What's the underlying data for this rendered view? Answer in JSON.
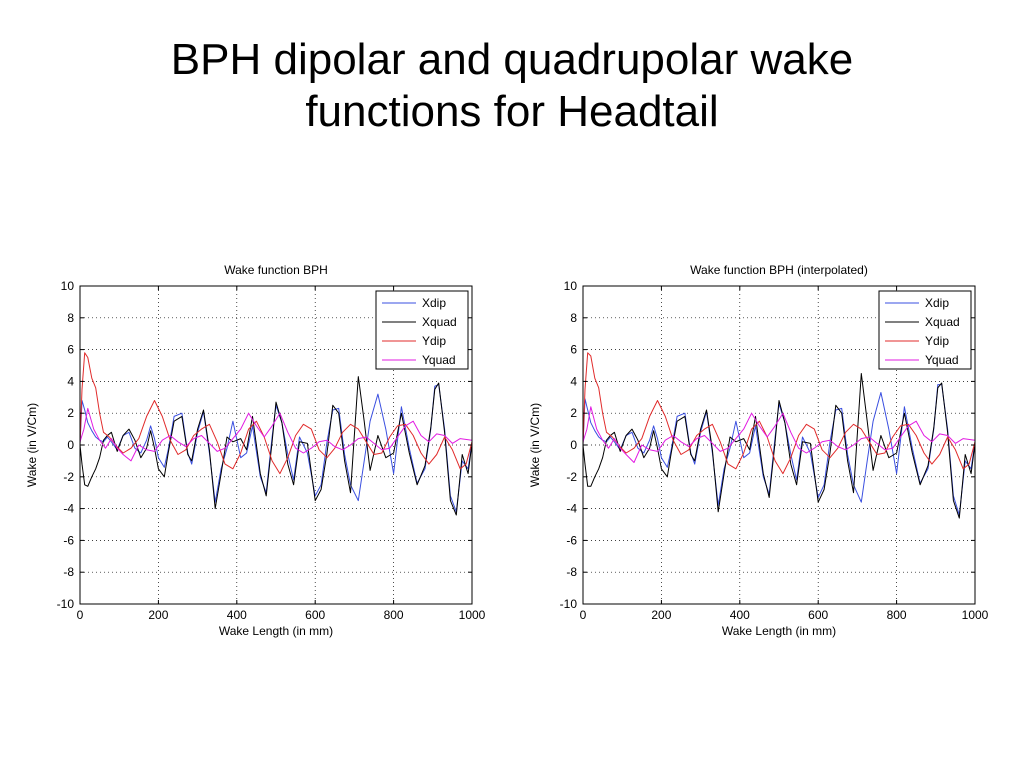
{
  "slide": {
    "title_line1": "BPH dipolar and quadrupolar wake",
    "title_line2": "functions for Headtail"
  },
  "chart_data": [
    {
      "type": "line",
      "title": "Wake function BPH",
      "xlabel": "Wake Length (in mm)",
      "ylabel": "Wake (in  V/Cm)",
      "xlim": [
        0,
        1000
      ],
      "ylim": [
        -10,
        10
      ],
      "xticks": [
        0,
        200,
        400,
        600,
        800,
        1000
      ],
      "yticks": [
        -10,
        -8,
        -6,
        -4,
        -2,
        0,
        2,
        4,
        6,
        8,
        10
      ],
      "grid": true,
      "legend_position": "top-right",
      "series": [
        {
          "name": "Xdip",
          "color": "#3a4fe0",
          "x": [
            0,
            5,
            12,
            20,
            30,
            40,
            50,
            60,
            70,
            80,
            95,
            110,
            125,
            140,
            155,
            170,
            180,
            190,
            200,
            215,
            225,
            240,
            260,
            275,
            285,
            300,
            315,
            330,
            345,
            360,
            375,
            390,
            410,
            425,
            440,
            460,
            475,
            490,
            500,
            515,
            530,
            545,
            560,
            580,
            600,
            615,
            630,
            645,
            660,
            675,
            690,
            710,
            725,
            740,
            760,
            780,
            800,
            820,
            840,
            860,
            880,
            895,
            905,
            915,
            930,
            945,
            960,
            975,
            990,
            1000
          ],
          "y": [
            0,
            2.8,
            2.2,
            1.4,
            0.9,
            0.5,
            0.3,
            0.2,
            0.5,
            0.2,
            -0.3,
            0.6,
            0.8,
            -0.2,
            -0.5,
            0.3,
            1.2,
            0.4,
            -0.8,
            -1.4,
            -0.3,
            1.8,
            2.0,
            -0.5,
            -1.2,
            0.8,
            2.1,
            -0.5,
            -3.6,
            -1.5,
            -0.2,
            1.5,
            -0.8,
            -0.5,
            1.2,
            -2.0,
            -3.0,
            0.5,
            2.5,
            1.4,
            -0.6,
            -2.2,
            0.5,
            -0.5,
            -3.2,
            -2.5,
            0.2,
            2.2,
            2.3,
            -0.6,
            -2.5,
            -3.5,
            -1.0,
            1.5,
            3.2,
            1.0,
            -1.8,
            2.4,
            -0.2,
            -2.4,
            -1.5,
            1.0,
            3.7,
            3.8,
            1.0,
            -3.2,
            -4.2,
            -1.0,
            -1.5,
            0.2
          ]
        },
        {
          "name": "Xquad",
          "color": "#000000",
          "x": [
            0,
            5,
            12,
            20,
            30,
            40,
            50,
            60,
            70,
            80,
            95,
            110,
            125,
            140,
            155,
            170,
            180,
            190,
            200,
            215,
            225,
            240,
            260,
            275,
            285,
            300,
            315,
            330,
            345,
            360,
            375,
            390,
            410,
            425,
            440,
            460,
            475,
            490,
            500,
            515,
            530,
            545,
            560,
            580,
            600,
            615,
            630,
            645,
            660,
            675,
            690,
            710,
            725,
            740,
            760,
            780,
            800,
            820,
            840,
            860,
            880,
            895,
            905,
            915,
            930,
            945,
            960,
            975,
            990,
            1000
          ],
          "y": [
            0,
            -1.2,
            -2.5,
            -2.6,
            -2.0,
            -1.5,
            -0.8,
            0.3,
            0.6,
            0.8,
            -0.4,
            0.6,
            1.0,
            0.3,
            -0.8,
            -0.2,
            0.9,
            -0.2,
            -1.5,
            -2.0,
            -0.5,
            1.5,
            1.8,
            -0.6,
            -1.0,
            1.0,
            2.2,
            -0.3,
            -4.0,
            -1.8,
            0.5,
            0.2,
            0.4,
            -0.3,
            1.8,
            -1.8,
            -3.2,
            0.2,
            2.7,
            1.4,
            -1.2,
            -2.5,
            0.2,
            0.1,
            -3.5,
            -2.8,
            -0.5,
            2.5,
            2.0,
            -1.0,
            -3.0,
            4.3,
            1.5,
            -1.6,
            0.6,
            -0.8,
            -0.5,
            2.0,
            -0.5,
            -2.5,
            -1.3,
            1.1,
            3.5,
            3.9,
            0.8,
            -3.5,
            -4.4,
            -0.6,
            -1.8,
            0.1
          ]
        },
        {
          "name": "Ydip",
          "color": "#e12b2b",
          "x": [
            0,
            5,
            12,
            20,
            30,
            40,
            50,
            60,
            75,
            90,
            110,
            130,
            150,
            170,
            190,
            210,
            230,
            250,
            270,
            290,
            310,
            330,
            350,
            370,
            390,
            410,
            430,
            450,
            470,
            490,
            510,
            530,
            550,
            570,
            590,
            610,
            630,
            650,
            670,
            690,
            710,
            730,
            750,
            770,
            790,
            810,
            830,
            850,
            870,
            890,
            910,
            930,
            950,
            970,
            985,
            1000
          ],
          "y": [
            0,
            3.5,
            5.8,
            5.5,
            4.2,
            3.6,
            2.0,
            0.8,
            0.5,
            0,
            -0.5,
            -0.2,
            0.4,
            1.8,
            2.8,
            1.8,
            0.3,
            -0.6,
            -0.3,
            0.6,
            1.0,
            1.3,
            0.2,
            -1.2,
            -1.5,
            -0.5,
            1.0,
            1.5,
            0.5,
            -1.0,
            -1.8,
            -0.8,
            0.6,
            1.3,
            1.0,
            -0.3,
            -0.8,
            -0.2,
            0.8,
            1.3,
            1.0,
            0.2,
            -0.6,
            -0.5,
            0.5,
            1.2,
            1.3,
            0.6,
            -0.5,
            -1.2,
            -0.6,
            0.5,
            -0.3,
            -1.5,
            -1.2,
            0.2
          ]
        },
        {
          "name": "Yquad",
          "color": "#e21be2",
          "x": [
            0,
            10,
            20,
            35,
            50,
            65,
            80,
            95,
            110,
            130,
            150,
            170,
            190,
            210,
            230,
            250,
            270,
            290,
            310,
            330,
            350,
            370,
            390,
            410,
            430,
            450,
            470,
            490,
            510,
            530,
            550,
            570,
            590,
            610,
            630,
            650,
            670,
            690,
            710,
            730,
            750,
            770,
            790,
            810,
            830,
            850,
            870,
            890,
            910,
            930,
            950,
            970,
            1000
          ],
          "y": [
            0.2,
            1.0,
            2.3,
            1.0,
            0.3,
            -0.2,
            0.4,
            -0.2,
            -0.6,
            -1.0,
            0,
            -0.3,
            -0.4,
            0.3,
            0.6,
            0.2,
            -0.1,
            0.4,
            0.6,
            0.1,
            -0.4,
            -0.2,
            0.4,
            1.0,
            2.0,
            1.2,
            0.5,
            1.2,
            2.0,
            0.8,
            -0.2,
            -0.5,
            -0.2,
            0.2,
            0.3,
            -0.1,
            -0.3,
            0,
            0.4,
            0.5,
            0.1,
            -0.3,
            -0.2,
            0.5,
            1.2,
            1.5,
            0.6,
            0.2,
            0.7,
            0.6,
            0.1,
            0.4,
            0.3
          ]
        }
      ]
    },
    {
      "type": "line",
      "title": "Wake function BPH (interpolated)",
      "xlabel": "Wake Length (in mm)",
      "ylabel": "Wake (in  V/Cm)",
      "xlim": [
        0,
        1000
      ],
      "ylim": [
        -10,
        10
      ],
      "xticks": [
        0,
        200,
        400,
        600,
        800,
        1000
      ],
      "yticks": [
        -10,
        -8,
        -6,
        -4,
        -2,
        0,
        2,
        4,
        6,
        8,
        10
      ],
      "grid": true,
      "legend_position": "top-right",
      "series": [
        {
          "name": "Xdip",
          "color": "#3a4fe0",
          "x": [
            0,
            5,
            12,
            20,
            30,
            40,
            50,
            60,
            70,
            80,
            95,
            110,
            125,
            140,
            155,
            170,
            180,
            190,
            200,
            215,
            225,
            240,
            260,
            275,
            285,
            300,
            315,
            330,
            345,
            360,
            375,
            390,
            410,
            425,
            440,
            460,
            475,
            490,
            500,
            515,
            530,
            545,
            560,
            580,
            600,
            615,
            630,
            645,
            660,
            675,
            690,
            710,
            725,
            740,
            760,
            780,
            800,
            820,
            840,
            860,
            880,
            895,
            905,
            915,
            930,
            945,
            960,
            975,
            990,
            1000
          ],
          "y": [
            0,
            2.9,
            2.2,
            1.4,
            0.9,
            0.5,
            0.3,
            0.2,
            0.5,
            0.2,
            -0.3,
            0.6,
            0.8,
            -0.2,
            -0.5,
            0.3,
            1.2,
            0.4,
            -0.8,
            -1.4,
            -0.3,
            1.8,
            2.0,
            -0.5,
            -1.2,
            0.8,
            2.1,
            -0.5,
            -3.8,
            -1.5,
            -0.2,
            1.5,
            -0.8,
            -0.5,
            1.2,
            -2.0,
            -3.1,
            0.5,
            2.6,
            1.4,
            -0.6,
            -2.2,
            0.5,
            -0.5,
            -3.3,
            -2.5,
            0.2,
            2.2,
            2.3,
            -0.6,
            -2.5,
            -3.6,
            -1.0,
            1.5,
            3.3,
            1.0,
            -1.8,
            2.4,
            -0.2,
            -2.4,
            -1.5,
            1.0,
            3.8,
            3.8,
            1.0,
            -3.2,
            -4.4,
            -1.0,
            -1.5,
            0.2
          ]
        },
        {
          "name": "Xquad",
          "color": "#000000",
          "x": [
            0,
            5,
            12,
            20,
            30,
            40,
            50,
            60,
            70,
            80,
            95,
            110,
            125,
            140,
            155,
            170,
            180,
            190,
            200,
            215,
            225,
            240,
            260,
            275,
            285,
            300,
            315,
            330,
            345,
            360,
            375,
            390,
            410,
            425,
            440,
            460,
            475,
            490,
            500,
            515,
            530,
            545,
            560,
            580,
            600,
            615,
            630,
            645,
            660,
            675,
            690,
            710,
            725,
            740,
            760,
            780,
            800,
            820,
            840,
            860,
            880,
            895,
            905,
            915,
            930,
            945,
            960,
            975,
            990,
            1000
          ],
          "y": [
            0,
            -1.2,
            -2.6,
            -2.6,
            -2.0,
            -1.5,
            -0.8,
            0.3,
            0.6,
            0.8,
            -0.4,
            0.6,
            1.0,
            0.3,
            -0.8,
            -0.2,
            0.9,
            -0.2,
            -1.5,
            -2.0,
            -0.5,
            1.5,
            1.8,
            -0.6,
            -1.0,
            1.0,
            2.2,
            -0.3,
            -4.2,
            -1.8,
            0.5,
            0.2,
            0.4,
            -0.3,
            1.8,
            -1.8,
            -3.3,
            0.2,
            2.8,
            1.4,
            -1.2,
            -2.5,
            0.2,
            0.1,
            -3.6,
            -2.8,
            -0.5,
            2.5,
            2.0,
            -1.0,
            -3.0,
            4.5,
            1.5,
            -1.6,
            0.6,
            -0.8,
            -0.5,
            2.0,
            -0.5,
            -2.5,
            -1.3,
            1.1,
            3.6,
            3.9,
            0.8,
            -3.5,
            -4.6,
            -0.6,
            -1.8,
            0.1
          ]
        },
        {
          "name": "Ydip",
          "color": "#e12b2b",
          "x": [
            0,
            5,
            12,
            20,
            30,
            40,
            50,
            60,
            75,
            90,
            110,
            130,
            150,
            170,
            190,
            210,
            230,
            250,
            270,
            290,
            310,
            330,
            350,
            370,
            390,
            410,
            430,
            450,
            470,
            490,
            510,
            530,
            550,
            570,
            590,
            610,
            630,
            650,
            670,
            690,
            710,
            730,
            750,
            770,
            790,
            810,
            830,
            850,
            870,
            890,
            910,
            930,
            950,
            970,
            985,
            1000
          ],
          "y": [
            0,
            3.5,
            5.8,
            5.6,
            4.2,
            3.6,
            2.0,
            0.8,
            0.5,
            0,
            -0.5,
            -0.2,
            0.4,
            1.8,
            2.8,
            1.8,
            0.3,
            -0.6,
            -0.3,
            0.6,
            1.0,
            1.3,
            0.2,
            -1.2,
            -1.5,
            -0.5,
            1.0,
            1.5,
            0.5,
            -1.0,
            -1.8,
            -0.8,
            0.6,
            1.3,
            1.0,
            -0.3,
            -0.8,
            -0.2,
            0.8,
            1.3,
            1.0,
            0.2,
            -0.6,
            -0.5,
            0.5,
            1.2,
            1.3,
            0.6,
            -0.5,
            -1.2,
            -0.6,
            0.5,
            -0.3,
            -1.5,
            -1.2,
            0.2
          ]
        },
        {
          "name": "Yquad",
          "color": "#e21be2",
          "x": [
            0,
            10,
            20,
            35,
            50,
            65,
            80,
            95,
            110,
            130,
            150,
            170,
            190,
            210,
            230,
            250,
            270,
            290,
            310,
            330,
            350,
            370,
            390,
            410,
            430,
            450,
            470,
            490,
            510,
            530,
            550,
            570,
            590,
            610,
            630,
            650,
            670,
            690,
            710,
            730,
            750,
            770,
            790,
            810,
            830,
            850,
            870,
            890,
            910,
            930,
            950,
            970,
            1000
          ],
          "y": [
            0.2,
            1.0,
            2.4,
            1.0,
            0.3,
            -0.2,
            0.4,
            -0.2,
            -0.6,
            -1.1,
            0,
            -0.3,
            -0.4,
            0.3,
            0.6,
            0.2,
            -0.1,
            0.4,
            0.6,
            0.1,
            -0.4,
            -0.2,
            0.4,
            1.0,
            2.0,
            1.2,
            0.5,
            1.2,
            2.0,
            0.8,
            -0.2,
            -0.5,
            -0.2,
            0.2,
            0.3,
            -0.1,
            -0.3,
            0,
            0.4,
            0.5,
            0.1,
            -0.3,
            -0.2,
            0.5,
            1.2,
            1.5,
            0.6,
            0.2,
            0.7,
            0.6,
            0.1,
            0.4,
            0.3
          ]
        }
      ]
    }
  ]
}
